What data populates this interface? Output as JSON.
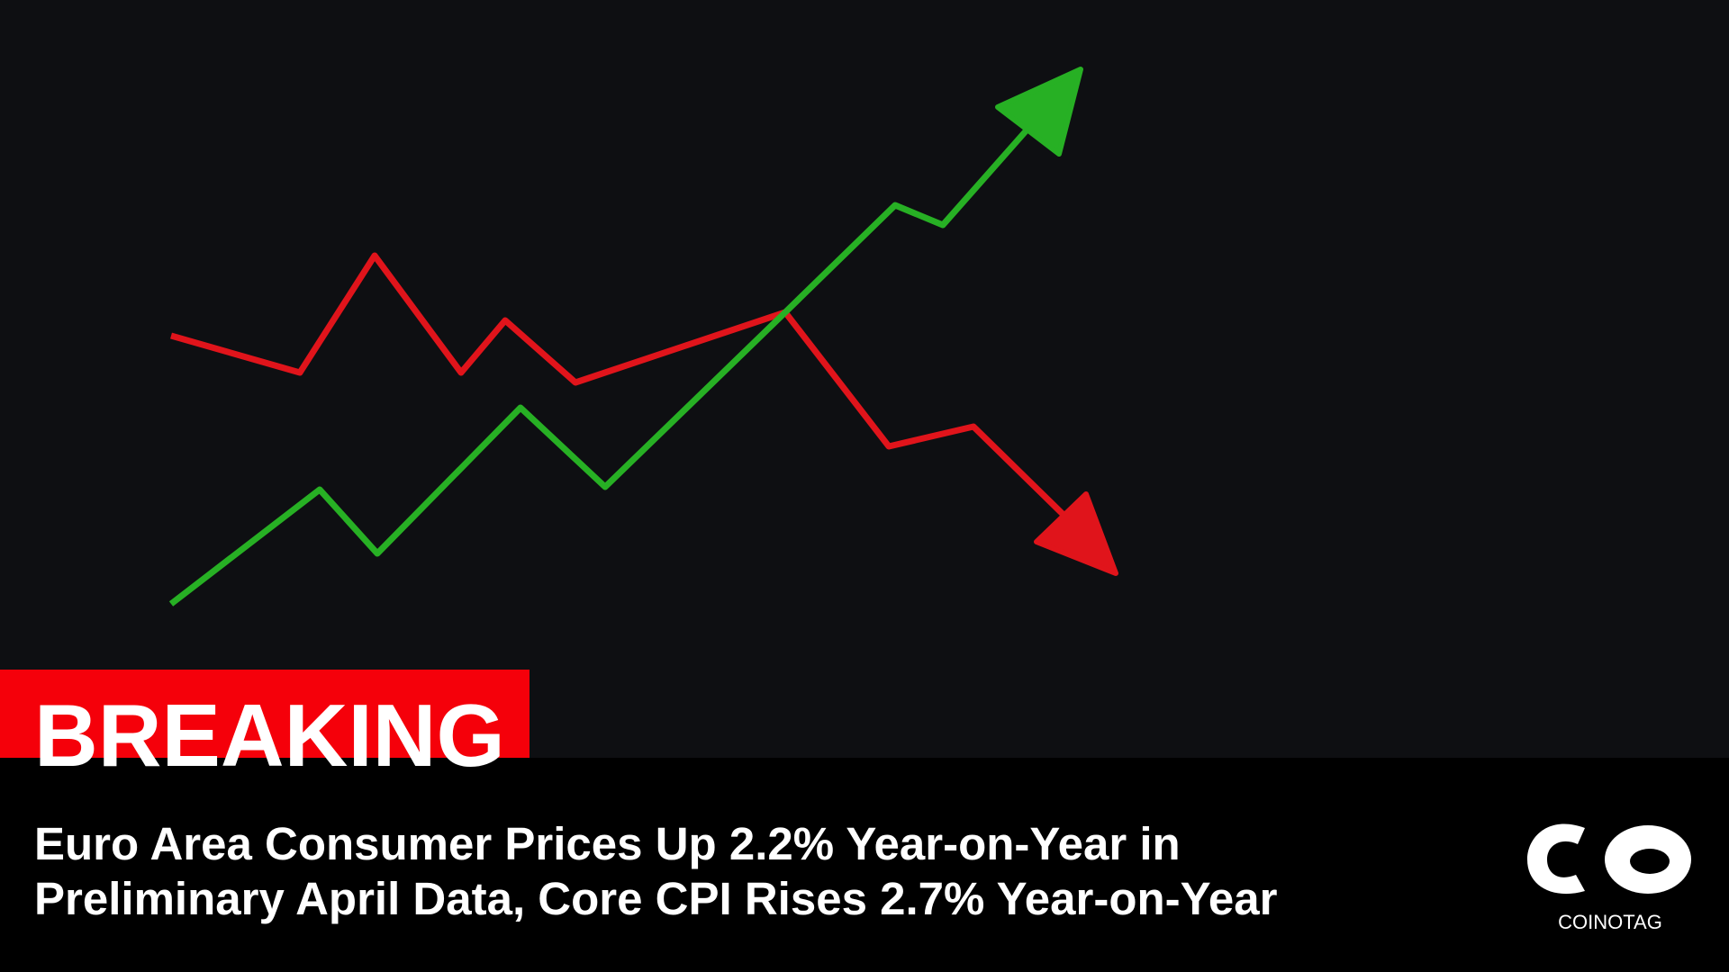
{
  "badge": "BREAKING",
  "headline": {
    "lines": [
      "Euro Area Consumer Prices Up 2.2% Year-on-Year in",
      "Preliminary April Data, Core CPI Rises 2.7% Year-on-Year"
    ]
  },
  "logo": {
    "text": "COINOTAG"
  }
}
